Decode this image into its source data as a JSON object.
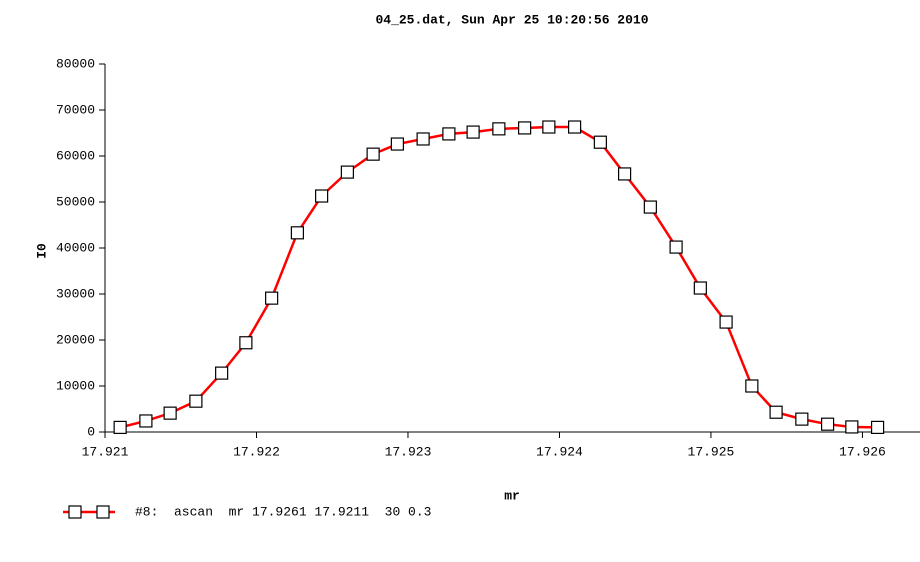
{
  "chart_data": {
    "type": "line",
    "title": "04_25.dat, Sun Apr 25 10:20:56 2010",
    "x_label": "mr",
    "y_label": "I0",
    "x": [
      17.9211,
      17.92127,
      17.92143,
      17.9216,
      17.92177,
      17.92193,
      17.9221,
      17.92227,
      17.92243,
      17.9226,
      17.92277,
      17.92293,
      17.9231,
      17.92327,
      17.92343,
      17.9236,
      17.92377,
      17.92393,
      17.9241,
      17.92427,
      17.92443,
      17.9246,
      17.92477,
      17.92493,
      17.9251,
      17.92527,
      17.92543,
      17.9256,
      17.92577,
      17.92593,
      17.9261
    ],
    "series": [
      {
        "name": "#8:  ascan  mr 17.9261 17.9211  30 0.3",
        "color": "#ff0000",
        "values": [
          1000,
          2400,
          4100,
          6700,
          12800,
          19400,
          29100,
          43300,
          51300,
          56500,
          60400,
          62600,
          63700,
          64800,
          65200,
          65900,
          66100,
          66300,
          66300,
          63000,
          56100,
          48900,
          40200,
          31300,
          23900,
          10000,
          4300,
          2800,
          1700,
          1100,
          1000
        ]
      }
    ],
    "xlim": [
      17.921,
      17.92638
    ],
    "xticks": [
      17.921,
      17.922,
      17.923,
      17.924,
      17.925,
      17.926
    ],
    "ylim": [
      0,
      80000
    ],
    "yticks": [
      0,
      10000,
      20000,
      30000,
      40000,
      50000,
      60000,
      70000,
      80000
    ],
    "grid": false
  }
}
